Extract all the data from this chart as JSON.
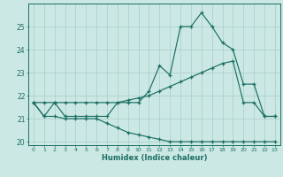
{
  "xlabel": "Humidex (Indice chaleur)",
  "bg_color": "#cce8e4",
  "grid_color": "#a8ceca",
  "line_color": "#1a6e64",
  "xmin": -0.5,
  "xmax": 23.5,
  "ymin": 19.85,
  "ymax": 26.0,
  "yticks": [
    20,
    21,
    22,
    23,
    24,
    25
  ],
  "xticks": [
    0,
    1,
    2,
    3,
    4,
    5,
    6,
    7,
    8,
    9,
    10,
    11,
    12,
    13,
    14,
    15,
    16,
    17,
    18,
    19,
    20,
    21,
    22,
    23
  ],
  "main_line_x": [
    0,
    1,
    2,
    3,
    4,
    5,
    6,
    7,
    8,
    9,
    10,
    11,
    12,
    13,
    14,
    15,
    16,
    17,
    18,
    19,
    20,
    21,
    22,
    23
  ],
  "main_line_y": [
    21.7,
    21.1,
    21.7,
    21.1,
    21.1,
    21.1,
    21.1,
    21.1,
    21.7,
    21.7,
    21.7,
    22.2,
    23.3,
    22.9,
    25.0,
    25.0,
    25.6,
    25.0,
    24.3,
    24.0,
    22.5,
    22.5,
    21.1,
    21.1
  ],
  "upper_line_x": [
    0,
    1,
    2,
    3,
    4,
    5,
    6,
    7,
    8,
    9,
    10,
    11,
    12,
    13,
    14,
    15,
    16,
    17,
    18,
    19,
    20,
    21,
    22,
    23
  ],
  "upper_line_y": [
    21.7,
    21.7,
    21.7,
    21.7,
    21.7,
    21.7,
    21.7,
    21.7,
    21.7,
    21.8,
    21.9,
    22.0,
    22.2,
    22.4,
    22.6,
    22.8,
    23.0,
    23.2,
    23.4,
    23.5,
    21.7,
    21.7,
    21.1,
    21.1
  ],
  "lower_line_x": [
    0,
    1,
    2,
    3,
    4,
    5,
    6,
    7,
    8,
    9,
    10,
    11,
    12,
    13,
    14,
    15,
    16,
    17,
    18,
    19,
    20,
    21,
    22,
    23
  ],
  "lower_line_y": [
    21.7,
    21.1,
    21.1,
    21.0,
    21.0,
    21.0,
    21.0,
    20.8,
    20.6,
    20.4,
    20.3,
    20.2,
    20.1,
    20.0,
    20.0,
    20.0,
    20.0,
    20.0,
    20.0,
    20.0,
    20.0,
    20.0,
    20.0,
    20.0
  ]
}
